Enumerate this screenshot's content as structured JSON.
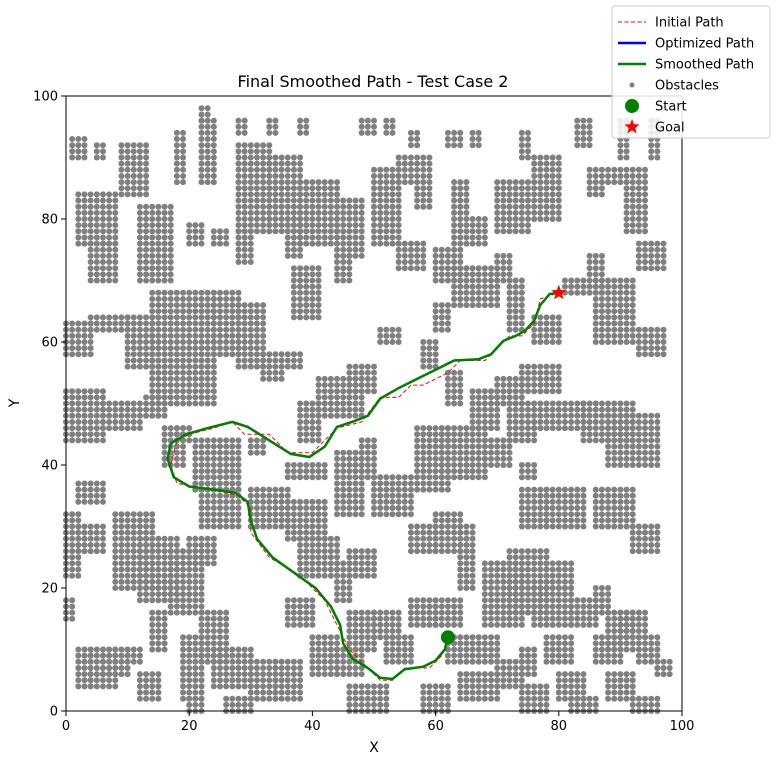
{
  "chart_data": {
    "type": "scatter",
    "title": "Final Smoothed Path - Test Case 2",
    "xlabel": "X",
    "ylabel": "Y",
    "xlim": [
      0,
      100
    ],
    "ylim": [
      0,
      100
    ],
    "xticks": [
      "0",
      "20",
      "40",
      "60",
      "80",
      "100"
    ],
    "yticks": [
      "0",
      "20",
      "40",
      "60",
      "80",
      "100"
    ],
    "grid": false,
    "legend_placement": "top-right",
    "legend": [
      {
        "key": "initial",
        "label": "Initial Path",
        "style": "dashed-line",
        "color": "#ff0000"
      },
      {
        "key": "optimized",
        "label": "Optimized Path",
        "style": "line",
        "color": "#0000ff"
      },
      {
        "key": "smoothed",
        "label": "Smoothed Path",
        "style": "line",
        "color": "#008000"
      },
      {
        "key": "obstacles",
        "label": "Obstacles",
        "style": "dot",
        "color": "#808080"
      },
      {
        "key": "start",
        "label": "Start",
        "style": "circle",
        "color": "#008000"
      },
      {
        "key": "goal",
        "label": "Goal",
        "style": "star",
        "color": "#ff0000"
      }
    ],
    "start": [
      62,
      12
    ],
    "goal": [
      80,
      68
    ],
    "initial_path": [
      [
        62,
        12
      ],
      [
        61,
        9
      ],
      [
        59,
        7
      ],
      [
        55,
        7
      ],
      [
        53,
        5
      ],
      [
        51,
        5
      ],
      [
        49,
        7
      ],
      [
        46,
        10
      ],
      [
        44,
        14
      ],
      [
        42,
        18
      ],
      [
        38,
        22
      ],
      [
        33,
        25
      ],
      [
        30,
        29
      ],
      [
        30,
        33
      ],
      [
        28,
        35
      ],
      [
        24,
        36
      ],
      [
        18,
        37
      ],
      [
        17,
        40
      ],
      [
        18,
        44
      ],
      [
        20,
        45
      ],
      [
        24,
        46
      ],
      [
        27,
        47
      ],
      [
        29,
        45
      ],
      [
        33,
        45
      ],
      [
        36,
        42
      ],
      [
        40,
        42
      ],
      [
        44,
        46
      ],
      [
        48,
        47
      ],
      [
        51,
        51
      ],
      [
        54,
        51
      ],
      [
        56,
        53
      ],
      [
        58,
        53
      ],
      [
        62,
        55
      ],
      [
        64,
        57
      ],
      [
        68,
        57
      ],
      [
        70,
        59
      ],
      [
        72,
        61
      ],
      [
        74,
        61
      ],
      [
        76,
        63
      ],
      [
        77,
        67
      ],
      [
        80,
        68
      ]
    ],
    "smoothed_path": [
      [
        62,
        12
      ],
      [
        61.5,
        10
      ],
      [
        60,
        8.2
      ],
      [
        58,
        7.2
      ],
      [
        55,
        6.8
      ],
      [
        53,
        5.2
      ],
      [
        51,
        5.4
      ],
      [
        49,
        7
      ],
      [
        46.5,
        8.5
      ],
      [
        45,
        11
      ],
      [
        44.5,
        14
      ],
      [
        43,
        17
      ],
      [
        40.5,
        20
      ],
      [
        37,
        22.5
      ],
      [
        33.5,
        25
      ],
      [
        31,
        28
      ],
      [
        30,
        31
      ],
      [
        29.5,
        34
      ],
      [
        27.5,
        35.5
      ],
      [
        24,
        36
      ],
      [
        20,
        36.5
      ],
      [
        17.5,
        38
      ],
      [
        16.5,
        41
      ],
      [
        17,
        43.5
      ],
      [
        19.5,
        45
      ],
      [
        23,
        46
      ],
      [
        27,
        47
      ],
      [
        29.5,
        46.2
      ],
      [
        33,
        44
      ],
      [
        36.5,
        41.8
      ],
      [
        39.5,
        41.3
      ],
      [
        42,
        43
      ],
      [
        44,
        46.2
      ],
      [
        47,
        47.2
      ],
      [
        49,
        48
      ],
      [
        51,
        50.8
      ],
      [
        54,
        52.5
      ],
      [
        57,
        54
      ],
      [
        60,
        55.5
      ],
      [
        63,
        57
      ],
      [
        67,
        57.2
      ],
      [
        69,
        58
      ],
      [
        71,
        60.2
      ],
      [
        73,
        61
      ],
      [
        74.5,
        61.8
      ],
      [
        76,
        63.5
      ],
      [
        77,
        66
      ],
      [
        78.5,
        67.8
      ],
      [
        80,
        68
      ]
    ],
    "obstacle_blocks": [
      [
        22,
        23,
        96,
        98
      ],
      [
        28,
        29,
        94,
        96
      ],
      [
        33,
        34,
        94,
        96
      ],
      [
        38,
        39,
        94,
        96
      ],
      [
        48,
        50,
        94,
        96
      ],
      [
        52,
        53,
        94,
        96
      ],
      [
        56,
        57,
        92,
        94
      ],
      [
        62,
        64,
        92,
        94
      ],
      [
        66,
        67,
        92,
        94
      ],
      [
        74,
        75,
        90,
        94
      ],
      [
        83,
        85,
        92,
        96
      ],
      [
        90,
        91,
        90,
        96
      ],
      [
        95,
        96,
        90,
        96
      ],
      [
        1,
        3,
        90,
        93
      ],
      [
        5,
        6,
        90,
        92
      ],
      [
        9,
        13,
        84,
        92
      ],
      [
        18,
        19,
        86,
        94
      ],
      [
        22,
        24,
        86,
        96
      ],
      [
        28,
        33,
        78,
        92
      ],
      [
        33,
        38,
        78,
        90
      ],
      [
        38,
        44,
        76,
        86
      ],
      [
        44,
        48,
        74,
        83
      ],
      [
        50,
        54,
        76,
        88
      ],
      [
        54,
        56,
        86,
        90
      ],
      [
        57,
        59,
        82,
        90
      ],
      [
        63,
        65,
        76,
        86
      ],
      [
        66,
        68,
        76,
        80
      ],
      [
        70,
        75,
        78,
        86
      ],
      [
        76,
        80,
        80,
        90
      ],
      [
        85,
        87,
        84,
        88
      ],
      [
        88,
        90,
        86,
        88
      ],
      [
        91,
        94,
        78,
        88
      ],
      [
        2,
        8,
        76,
        84
      ],
      [
        4,
        8,
        70,
        76
      ],
      [
        12,
        17,
        70,
        82
      ],
      [
        20,
        22,
        76,
        79
      ],
      [
        24,
        26,
        76,
        78
      ],
      [
        28,
        30,
        73,
        78
      ],
      [
        36,
        38,
        74,
        80
      ],
      [
        37,
        41,
        64,
        72
      ],
      [
        44,
        46,
        70,
        74
      ],
      [
        54,
        58,
        72,
        76
      ],
      [
        60,
        64,
        70,
        75
      ],
      [
        63,
        70,
        66,
        72
      ],
      [
        60,
        62,
        62,
        66
      ],
      [
        70,
        72,
        70,
        74
      ],
      [
        72,
        74,
        62,
        70
      ],
      [
        76,
        80,
        60,
        64
      ],
      [
        81,
        84,
        68,
        70
      ],
      [
        85,
        87,
        68,
        74
      ],
      [
        86,
        92,
        60,
        70
      ],
      [
        93,
        97,
        58,
        62
      ],
      [
        93,
        97,
        72,
        76
      ],
      [
        0,
        4,
        58,
        63
      ],
      [
        4,
        10,
        62,
        64
      ],
      [
        10,
        14,
        56,
        64
      ],
      [
        14,
        24,
        50,
        68
      ],
      [
        24,
        28,
        58,
        68
      ],
      [
        28,
        32,
        56,
        66
      ],
      [
        32,
        35,
        54,
        58
      ],
      [
        36,
        38,
        56,
        58
      ],
      [
        38,
        41,
        44,
        50
      ],
      [
        41,
        48,
        48,
        54
      ],
      [
        46,
        50,
        52,
        56
      ],
      [
        51,
        54,
        60,
        62
      ],
      [
        58,
        60,
        56,
        60
      ],
      [
        62,
        64,
        50,
        55
      ],
      [
        66,
        70,
        46,
        52
      ],
      [
        70,
        74,
        50,
        54
      ],
      [
        72,
        76,
        44,
        50
      ],
      [
        74,
        80,
        52,
        56
      ],
      [
        76,
        84,
        46,
        50
      ],
      [
        84,
        92,
        44,
        50
      ],
      [
        88,
        96,
        40,
        48
      ],
      [
        0,
        6,
        44,
        52
      ],
      [
        6,
        12,
        46,
        50
      ],
      [
        13,
        16,
        48,
        51
      ],
      [
        16,
        19,
        40,
        46
      ],
      [
        18,
        20,
        44,
        46
      ],
      [
        21,
        28,
        36,
        44
      ],
      [
        30,
        32,
        42,
        44
      ],
      [
        36,
        42,
        38,
        40
      ],
      [
        44,
        48,
        32,
        42
      ],
      [
        48,
        50,
        38,
        44
      ],
      [
        50,
        56,
        32,
        38
      ],
      [
        57,
        62,
        36,
        46
      ],
      [
        61,
        68,
        38,
        46
      ],
      [
        68,
        72,
        40,
        44
      ],
      [
        74,
        76,
        38,
        40
      ],
      [
        74,
        78,
        30,
        36
      ],
      [
        78,
        84,
        30,
        36
      ],
      [
        86,
        92,
        30,
        36
      ],
      [
        92,
        96,
        26,
        30
      ],
      [
        2,
        6,
        34,
        37
      ],
      [
        0,
        2,
        22,
        32
      ],
      [
        2,
        6,
        26,
        30
      ],
      [
        8,
        14,
        20,
        32
      ],
      [
        12,
        18,
        18,
        28
      ],
      [
        17,
        22,
        16,
        26
      ],
      [
        20,
        24,
        24,
        28
      ],
      [
        22,
        28,
        30,
        36
      ],
      [
        30,
        36,
        30,
        36
      ],
      [
        36,
        42,
        28,
        34
      ],
      [
        38,
        44,
        22,
        28
      ],
      [
        44,
        46,
        18,
        24
      ],
      [
        46,
        50,
        22,
        26
      ],
      [
        56,
        60,
        26,
        30
      ],
      [
        60,
        64,
        26,
        32
      ],
      [
        64,
        66,
        20,
        30
      ],
      [
        68,
        74,
        14,
        24
      ],
      [
        72,
        78,
        16,
        26
      ],
      [
        76,
        82,
        14,
        20
      ],
      [
        78,
        82,
        20,
        24
      ],
      [
        82,
        86,
        14,
        18
      ],
      [
        86,
        88,
        16,
        20
      ],
      [
        88,
        92,
        10,
        16
      ],
      [
        0,
        1,
        15,
        18
      ],
      [
        2,
        4,
        4,
        10
      ],
      [
        4,
        8,
        4,
        10
      ],
      [
        6,
        10,
        6,
        10
      ],
      [
        10,
        12,
        8,
        10
      ],
      [
        12,
        15,
        2,
        6
      ],
      [
        14,
        16,
        10,
        16
      ],
      [
        19,
        22,
        2,
        12
      ],
      [
        22,
        26,
        8,
        16
      ],
      [
        24,
        30,
        4,
        10
      ],
      [
        30,
        34,
        2,
        8
      ],
      [
        34,
        38,
        2,
        8
      ],
      [
        36,
        40,
        14,
        18
      ],
      [
        40,
        44,
        6,
        12
      ],
      [
        44,
        48,
        6,
        10
      ],
      [
        46,
        50,
        10,
        16
      ],
      [
        50,
        54,
        12,
        16
      ],
      [
        52,
        56,
        8,
        12
      ],
      [
        56,
        60,
        14,
        18
      ],
      [
        60,
        64,
        14,
        18
      ],
      [
        62,
        70,
        8,
        12
      ],
      [
        64,
        70,
        2,
        6
      ],
      [
        70,
        74,
        4,
        8
      ],
      [
        74,
        76,
        6,
        10
      ],
      [
        74,
        78,
        0,
        4
      ],
      [
        78,
        82,
        8,
        12
      ],
      [
        80,
        84,
        2,
        6
      ],
      [
        86,
        90,
        8,
        12
      ],
      [
        88,
        92,
        2,
        6
      ],
      [
        90,
        94,
        12,
        16
      ],
      [
        93,
        96,
        8,
        12
      ],
      [
        96,
        98,
        6,
        8
      ],
      [
        92,
        96,
        0,
        2
      ],
      [
        82,
        86,
        0,
        2
      ],
      [
        58,
        62,
        0,
        4
      ],
      [
        46,
        52,
        0,
        4
      ],
      [
        26,
        30,
        0,
        2
      ],
      [
        20,
        22,
        0,
        2
      ]
    ]
  }
}
